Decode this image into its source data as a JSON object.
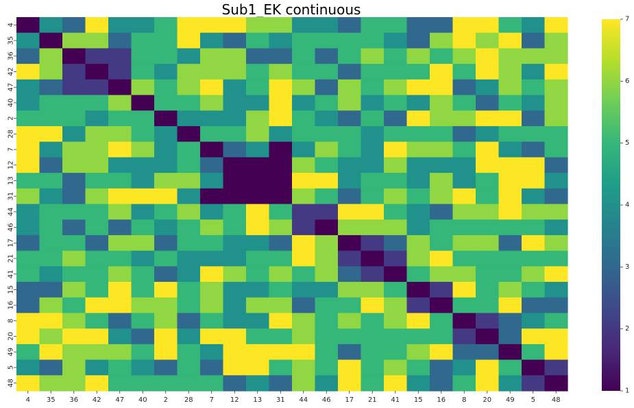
{
  "chart_data": {
    "type": "heatmap",
    "title": "Sub1_EK continuous",
    "xlabel": "",
    "ylabel": "",
    "x_labels": [
      "4",
      "35",
      "36",
      "42",
      "47",
      "40",
      "2",
      "28",
      "7",
      "12",
      "13",
      "31",
      "44",
      "46",
      "17",
      "21",
      "41",
      "15",
      "16",
      "8",
      "20",
      "49",
      "5",
      "48"
    ],
    "y_labels": [
      "4",
      "35",
      "36",
      "42",
      "47",
      "40",
      "2",
      "28",
      "7",
      "12",
      "13",
      "31",
      "44",
      "46",
      "17",
      "21",
      "41",
      "15",
      "16",
      "8",
      "20",
      "49",
      "5",
      "48"
    ],
    "values": [
      [
        1,
        4,
        3,
        7,
        4,
        4,
        5,
        7,
        7,
        7,
        6,
        6,
        4,
        4,
        3,
        5,
        5,
        3,
        3,
        7,
        7,
        5,
        4,
        7
      ],
      [
        4,
        1,
        6,
        6,
        3,
        5,
        5,
        7,
        4,
        3,
        5,
        4,
        5,
        5,
        5,
        5,
        4,
        3,
        6,
        7,
        6,
        7,
        3,
        6
      ],
      [
        3,
        6,
        1,
        2,
        2,
        5,
        5,
        4,
        6,
        6,
        3,
        3,
        5,
        3,
        5,
        6,
        5,
        6,
        5,
        6,
        7,
        6,
        6,
        6
      ],
      [
        7,
        6,
        2,
        1,
        2,
        5,
        4,
        6,
        6,
        6,
        5,
        6,
        5,
        5,
        3,
        5,
        5,
        5,
        7,
        5,
        7,
        6,
        4,
        7
      ],
      [
        4,
        3,
        2,
        2,
        1,
        6,
        5,
        6,
        7,
        4,
        5,
        7,
        6,
        3,
        6,
        5,
        6,
        7,
        7,
        3,
        4,
        6,
        5,
        6
      ],
      [
        4,
        5,
        5,
        5,
        6,
        1,
        5,
        5,
        6,
        4,
        4,
        7,
        4,
        5,
        6,
        4,
        5,
        4,
        6,
        5,
        3,
        5,
        4,
        6
      ],
      [
        5,
        5,
        5,
        4,
        5,
        5,
        1,
        4,
        4,
        4,
        6,
        7,
        5,
        4,
        3,
        5,
        3,
        7,
        6,
        6,
        7,
        7,
        3,
        6
      ],
      [
        7,
        7,
        4,
        6,
        6,
        5,
        4,
        1,
        5,
        5,
        6,
        4,
        5,
        5,
        5,
        4,
        5,
        5,
        5,
        3,
        4,
        5,
        5,
        5
      ],
      [
        7,
        4,
        6,
        6,
        7,
        6,
        4,
        5,
        1,
        3,
        4,
        1,
        4,
        6,
        5,
        4,
        7,
        6,
        6,
        5,
        7,
        4,
        3,
        5
      ],
      [
        7,
        3,
        6,
        6,
        4,
        4,
        4,
        5,
        3,
        1,
        1,
        1,
        6,
        5,
        4,
        4,
        6,
        4,
        4,
        4,
        7,
        7,
        7,
        3
      ],
      [
        5,
        5,
        3,
        5,
        5,
        4,
        6,
        6,
        4,
        1,
        1,
        1,
        7,
        7,
        4,
        5,
        5,
        4,
        6,
        4,
        5,
        7,
        7,
        4
      ],
      [
        6,
        4,
        3,
        6,
        7,
        7,
        7,
        4,
        1,
        1,
        1,
        1,
        6,
        5,
        3,
        5,
        6,
        5,
        6,
        7,
        5,
        7,
        4,
        3
      ],
      [
        4,
        5,
        5,
        5,
        6,
        4,
        5,
        6,
        4,
        5,
        7,
        5,
        2,
        2,
        7,
        7,
        5,
        4,
        3,
        6,
        6,
        7,
        6,
        6
      ],
      [
        4,
        5,
        3,
        5,
        3,
        5,
        4,
        5,
        6,
        5,
        7,
        6,
        2,
        1,
        6,
        6,
        6,
        4,
        5,
        5,
        5,
        5,
        5,
        4
      ],
      [
        3,
        5,
        5,
        3,
        6,
        6,
        3,
        5,
        5,
        4,
        4,
        3,
        7,
        6,
        1,
        2,
        3,
        6,
        5,
        6,
        6,
        3,
        7,
        6
      ],
      [
        5,
        5,
        6,
        5,
        5,
        4,
        5,
        4,
        4,
        4,
        5,
        5,
        7,
        6,
        2,
        1,
        2,
        6,
        7,
        5,
        5,
        5,
        5,
        5
      ],
      [
        5,
        4,
        5,
        5,
        6,
        5,
        3,
        4,
        7,
        6,
        5,
        6,
        5,
        6,
        3,
        2,
        1,
        5,
        6,
        6,
        5,
        5,
        6,
        7
      ],
      [
        3,
        3,
        6,
        5,
        7,
        5,
        7,
        5,
        6,
        4,
        4,
        5,
        4,
        4,
        6,
        6,
        5,
        1,
        2,
        7,
        5,
        6,
        5,
        4
      ],
      [
        3,
        6,
        5,
        7,
        7,
        6,
        6,
        5,
        6,
        4,
        6,
        6,
        3,
        5,
        5,
        7,
        6,
        2,
        1,
        5,
        5,
        7,
        3,
        3
      ],
      [
        7,
        7,
        6,
        5,
        3,
        5,
        6,
        3,
        5,
        4,
        4,
        7,
        6,
        5,
        6,
        5,
        6,
        7,
        5,
        1,
        2,
        3,
        4,
        5
      ],
      [
        7,
        6,
        7,
        7,
        4,
        3,
        7,
        4,
        7,
        7,
        5,
        5,
        6,
        5,
        5,
        5,
        5,
        5,
        5,
        2,
        1,
        3,
        7,
        7
      ],
      [
        5,
        7,
        6,
        6,
        6,
        5,
        7,
        5,
        4,
        7,
        7,
        7,
        7,
        5,
        3,
        5,
        5,
        6,
        7,
        3,
        3,
        1,
        5,
        7
      ],
      [
        4,
        3,
        6,
        4,
        5,
        4,
        3,
        5,
        3,
        7,
        7,
        5,
        6,
        5,
        7,
        5,
        6,
        5,
        3,
        4,
        7,
        5,
        1,
        2
      ],
      [
        7,
        6,
        6,
        7,
        5,
        5,
        5,
        5,
        5,
        3,
        4,
        3,
        6,
        4,
        7,
        5,
        7,
        4,
        3,
        5,
        7,
        4,
        2,
        1
      ]
    ],
    "colormap": "viridis",
    "vmin": 1,
    "vmax": 7,
    "colorbar_ticks": [
      "1",
      "2",
      "3",
      "4",
      "5",
      "6",
      "7"
    ],
    "grid": false
  }
}
